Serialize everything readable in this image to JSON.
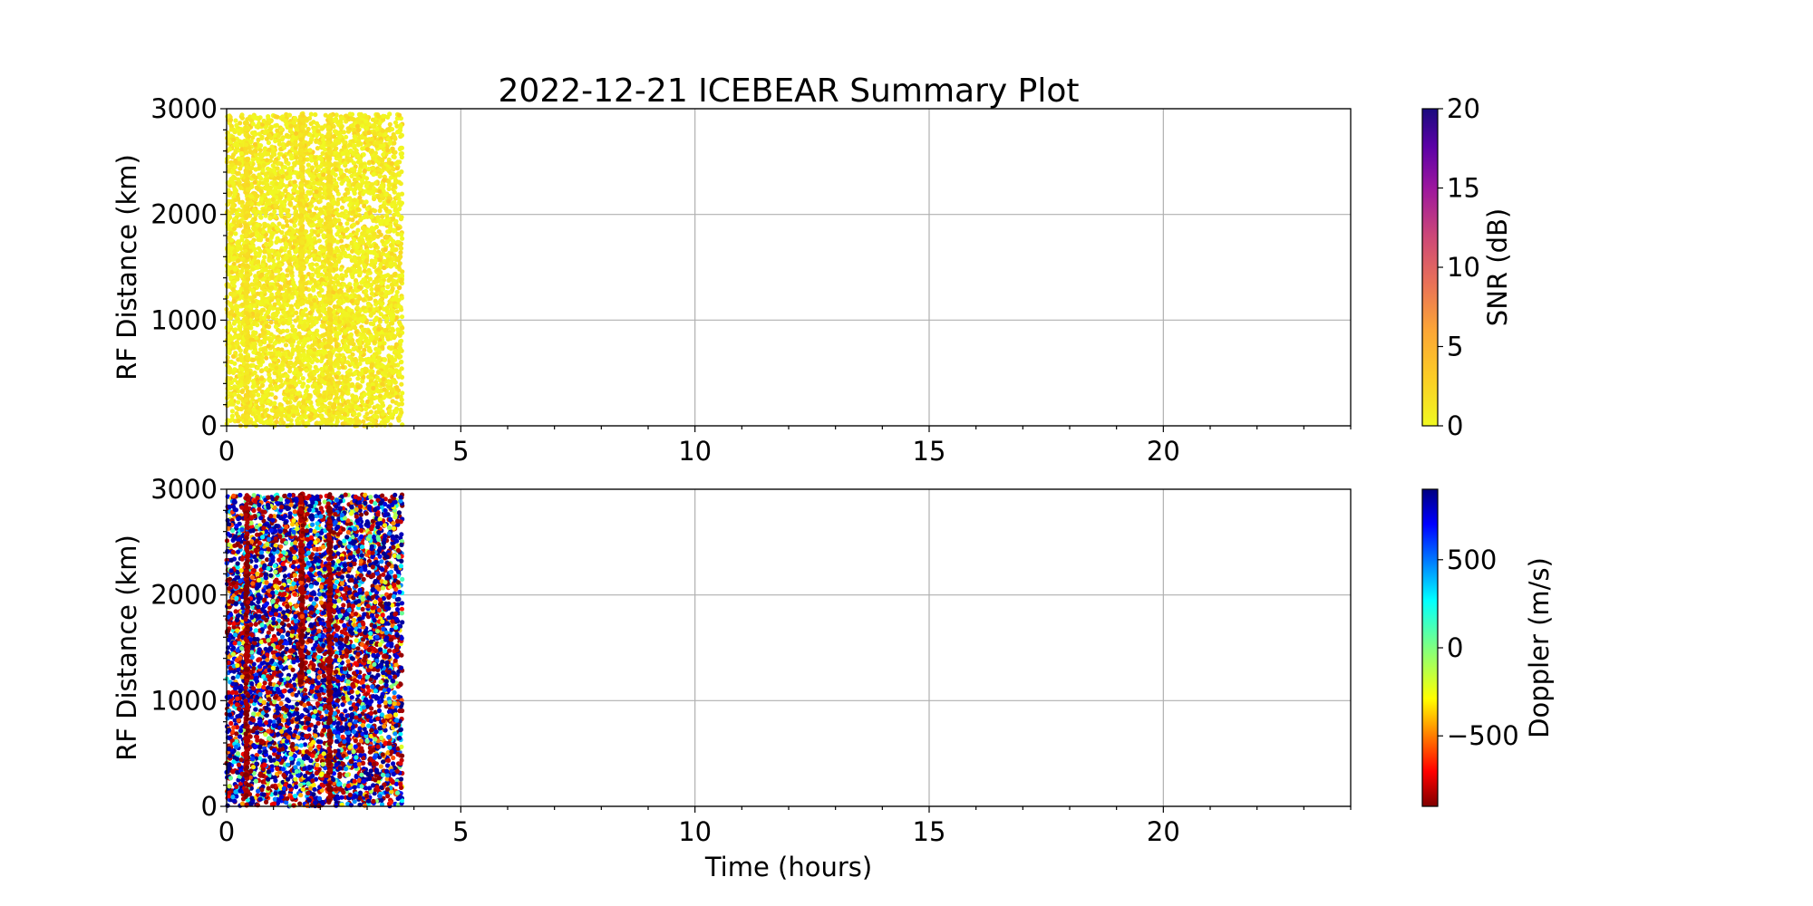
{
  "title": "2022-12-21 ICEBEAR Summary Plot",
  "chart_data": [
    {
      "type": "scatter",
      "panel": "top",
      "ylabel": "RF Distance (km)",
      "xlabel": "",
      "xlim": [
        0,
        24
      ],
      "ylim": [
        0,
        3000
      ],
      "xticks": [
        "0",
        "5",
        "10",
        "15",
        "20"
      ],
      "yticks": [
        "0",
        "1000",
        "2000",
        "3000"
      ],
      "grid": true,
      "data_extent": {
        "time_hours": [
          0,
          3.75
        ],
        "distance_km": [
          0,
          2950
        ]
      },
      "dense_stripes_hours": [
        0.43,
        1.6,
        2.2
      ],
      "color_by": "SNR",
      "colorbar": {
        "label": "SNR (dB)",
        "range": [
          0,
          20
        ],
        "ticks": [
          "0",
          "5",
          "10",
          "15",
          "20"
        ],
        "colormap": "plasma_r"
      },
      "typical_value": "0-2 dB (yellow)"
    },
    {
      "type": "scatter",
      "panel": "bottom",
      "ylabel": "RF Distance (km)",
      "xlabel": "Time (hours)",
      "xlim": [
        0,
        24
      ],
      "ylim": [
        0,
        3000
      ],
      "xticks": [
        "0",
        "5",
        "10",
        "15",
        "20"
      ],
      "yticks": [
        "0",
        "1000",
        "2000",
        "3000"
      ],
      "grid": true,
      "data_extent": {
        "time_hours": [
          0,
          3.75
        ],
        "distance_km": [
          0,
          2950
        ]
      },
      "dense_stripes_hours": [
        0.43,
        1.6,
        2.2
      ],
      "color_by": "Doppler",
      "colorbar": {
        "label": "Doppler (m/s)",
        "range": [
          -900,
          900
        ],
        "ticks": [
          "−500",
          "0",
          "500"
        ],
        "tick_values": [
          -500,
          0,
          500
        ],
        "colormap": "jet"
      }
    }
  ]
}
